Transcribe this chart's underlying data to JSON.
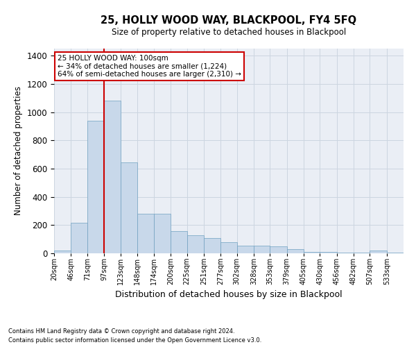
{
  "title": "25, HOLLY WOOD WAY, BLACKPOOL, FY4 5FQ",
  "subtitle": "Size of property relative to detached houses in Blackpool",
  "xlabel": "Distribution of detached houses by size in Blackpool",
  "ylabel": "Number of detached properties",
  "footnote1": "Contains HM Land Registry data © Crown copyright and database right 2024.",
  "footnote2": "Contains public sector information licensed under the Open Government Licence v3.0.",
  "annotation_line1": "25 HOLLY WOOD WAY: 100sqm",
  "annotation_line2": "← 34% of detached houses are smaller (1,224)",
  "annotation_line3": "64% of semi-detached houses are larger (2,310) →",
  "bar_color": "#c8d8ea",
  "bar_edge_color": "#6fa0c0",
  "vline_color": "#cc0000",
  "vline_x": 97,
  "grid_color": "#ccd5e0",
  "bg_color": "#eaeef5",
  "categories": [
    "20sqm",
    "46sqm",
    "71sqm",
    "97sqm",
    "123sqm",
    "148sqm",
    "174sqm",
    "200sqm",
    "225sqm",
    "251sqm",
    "277sqm",
    "302sqm",
    "328sqm",
    "353sqm",
    "379sqm",
    "405sqm",
    "430sqm",
    "456sqm",
    "482sqm",
    "507sqm",
    "533sqm"
  ],
  "bin_edges": [
    20,
    46,
    71,
    97,
    123,
    148,
    174,
    200,
    225,
    251,
    277,
    302,
    328,
    353,
    379,
    405,
    430,
    456,
    482,
    507,
    533
  ],
  "values": [
    18,
    218,
    940,
    1080,
    645,
    280,
    280,
    155,
    130,
    110,
    80,
    55,
    55,
    48,
    28,
    12,
    12,
    6,
    6,
    22,
    6
  ],
  "ylim": [
    0,
    1450
  ],
  "yticks": [
    0,
    200,
    400,
    600,
    800,
    1000,
    1200,
    1400
  ],
  "annotation_box_color": "#ffffff",
  "annotation_box_edge": "#cc0000"
}
